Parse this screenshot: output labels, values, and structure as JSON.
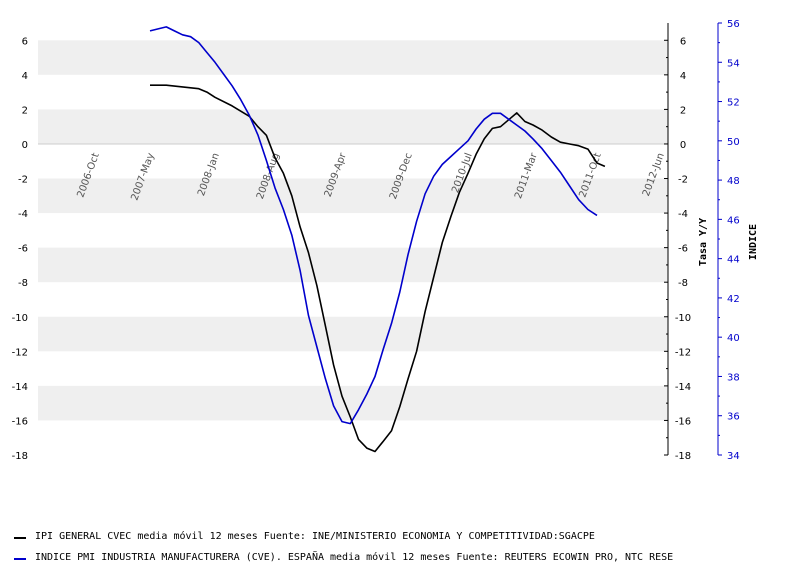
{
  "chart_data": {
    "type": "line",
    "x_labels": [
      "2006-Oct",
      "2007-May",
      "2008-Jan",
      "2008-Aug",
      "2009-Apr",
      "2009-Dec",
      "2010-Jul",
      "2011-Mar",
      "2011-Oct",
      "2012-Jun"
    ],
    "left_axis": {
      "label": "",
      "min": -18,
      "max": 7,
      "ticks": [
        "6",
        "4",
        "2",
        "0",
        "-2",
        "-4",
        "-6",
        "-8",
        "-10",
        "-12",
        "-14",
        "-16",
        "-18"
      ]
    },
    "right_inner_axis": {
      "label": "Tasa Y/Y",
      "min": -18,
      "max": 7,
      "ticks": [
        "6",
        "4",
        "2",
        "0",
        "-2",
        "-4",
        "-6",
        "-8",
        "-10",
        "-12",
        "-14",
        "-16",
        "-18"
      ]
    },
    "right_outer_axis": {
      "label": "INDICE",
      "min": 34,
      "max": 56,
      "ticks": [
        "56",
        "54",
        "52",
        "50",
        "48",
        "46",
        "44",
        "42",
        "40",
        "38",
        "36",
        "34"
      ],
      "color": "#0000cc"
    },
    "grid": true,
    "series": [
      {
        "name": "IPI GENERAL CVEC media móvil 12 meses  Fuente: INE/MINISTERIO ECONOMIA Y COMPETITIVIDAD:SGACPE",
        "axis": "left",
        "color": "#000000",
        "points": [
          [
            "2007-05",
            3.4
          ],
          [
            "2007-07",
            3.4
          ],
          [
            "2007-09",
            3.3
          ],
          [
            "2007-11",
            3.2
          ],
          [
            "2007-12",
            3.0
          ],
          [
            "2008-01",
            2.7
          ],
          [
            "2008-03",
            2.2
          ],
          [
            "2008-05",
            1.6
          ],
          [
            "2008-06",
            1.0
          ],
          [
            "2008-07",
            0.5
          ],
          [
            "2008-08",
            -0.8
          ],
          [
            "2008-09",
            -1.7
          ],
          [
            "2008-10",
            -3.0
          ],
          [
            "2008-11",
            -4.8
          ],
          [
            "2008-12",
            -6.3
          ],
          [
            "2009-01",
            -8.2
          ],
          [
            "2009-02",
            -10.5
          ],
          [
            "2009-03",
            -12.8
          ],
          [
            "2009-04",
            -14.6
          ],
          [
            "2009-05",
            -15.8
          ],
          [
            "2009-06",
            -17.1
          ],
          [
            "2009-07",
            -17.6
          ],
          [
            "2009-08",
            -17.8
          ],
          [
            "2009-09",
            -17.2
          ],
          [
            "2009-10",
            -16.6
          ],
          [
            "2009-11",
            -15.2
          ],
          [
            "2009-12",
            -13.6
          ],
          [
            "2010-01",
            -12.0
          ],
          [
            "2010-02",
            -9.7
          ],
          [
            "2010-03",
            -7.7
          ],
          [
            "2010-04",
            -5.7
          ],
          [
            "2010-05",
            -4.2
          ],
          [
            "2010-06",
            -2.8
          ],
          [
            "2010-07",
            -1.7
          ],
          [
            "2010-08",
            -0.6
          ],
          [
            "2010-09",
            0.3
          ],
          [
            "2010-10",
            0.9
          ],
          [
            "2010-11",
            1.0
          ],
          [
            "2010-12",
            1.4
          ],
          [
            "2011-01",
            1.8
          ],
          [
            "2011-02",
            1.3
          ],
          [
            "2011-03",
            1.1
          ],
          [
            "2011-04",
            0.8
          ],
          [
            "2011-05",
            0.4
          ],
          [
            "2011-06",
            0.1
          ],
          [
            "2011-07",
            0.0
          ],
          [
            "2011-08",
            -0.1
          ],
          [
            "2011-09",
            -0.3
          ],
          [
            "2011-10",
            -1.1
          ],
          [
            "2011-11",
            -1.3
          ]
        ]
      },
      {
        "name": "INDICE PMI INDUSTRIA MANUFACTURERA (CVE). ESPAÑA media móvil 12 meses  Fuente: REUTERS ECOWIN PRO, NTC RESE",
        "axis": "right_outer",
        "color": "#0000cc",
        "points": [
          [
            "2007-05",
            55.6
          ],
          [
            "2007-06",
            55.7
          ],
          [
            "2007-07",
            55.8
          ],
          [
            "2007-08",
            55.6
          ],
          [
            "2007-09",
            55.4
          ],
          [
            "2007-10",
            55.3
          ],
          [
            "2007-11",
            55.0
          ],
          [
            "2007-12",
            54.5
          ],
          [
            "2008-01",
            54.0
          ],
          [
            "2008-02",
            53.4
          ],
          [
            "2008-03",
            52.8
          ],
          [
            "2008-04",
            52.1
          ],
          [
            "2008-05",
            51.3
          ],
          [
            "2008-06",
            50.3
          ],
          [
            "2008-07",
            49.0
          ],
          [
            "2008-08",
            47.6
          ],
          [
            "2008-09",
            46.5
          ],
          [
            "2008-10",
            45.2
          ],
          [
            "2008-11",
            43.4
          ],
          [
            "2008-12",
            41.1
          ],
          [
            "2009-01",
            39.5
          ],
          [
            "2009-02",
            37.9
          ],
          [
            "2009-03",
            36.5
          ],
          [
            "2009-04",
            35.7
          ],
          [
            "2009-05",
            35.6
          ],
          [
            "2009-06",
            36.3
          ],
          [
            "2009-07",
            37.1
          ],
          [
            "2009-08",
            38.0
          ],
          [
            "2009-09",
            39.4
          ],
          [
            "2009-10",
            40.7
          ],
          [
            "2009-11",
            42.3
          ],
          [
            "2009-12",
            44.2
          ],
          [
            "2010-01",
            45.9
          ],
          [
            "2010-02",
            47.3
          ],
          [
            "2010-03",
            48.2
          ],
          [
            "2010-04",
            48.8
          ],
          [
            "2010-05",
            49.2
          ],
          [
            "2010-06",
            49.6
          ],
          [
            "2010-07",
            50.0
          ],
          [
            "2010-08",
            50.6
          ],
          [
            "2010-09",
            51.1
          ],
          [
            "2010-10",
            51.4
          ],
          [
            "2010-11",
            51.4
          ],
          [
            "2010-12",
            51.1
          ],
          [
            "2011-01",
            50.8
          ],
          [
            "2011-02",
            50.5
          ],
          [
            "2011-03",
            50.1
          ],
          [
            "2011-04",
            49.6
          ],
          [
            "2011-05",
            49.0
          ],
          [
            "2011-06",
            48.4
          ],
          [
            "2011-07",
            47.7
          ],
          [
            "2011-08",
            47.0
          ],
          [
            "2011-09",
            46.5
          ],
          [
            "2011-10",
            46.2
          ]
        ]
      }
    ]
  }
}
